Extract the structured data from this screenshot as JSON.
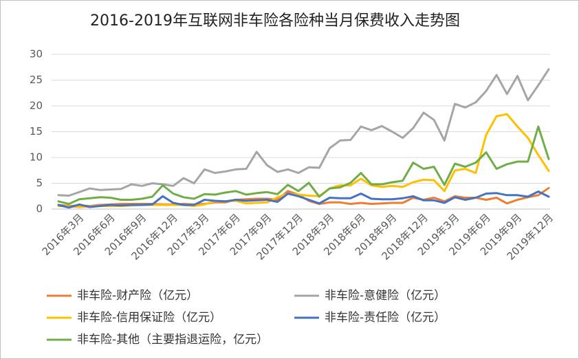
{
  "chart_data": {
    "type": "line",
    "title": "2016-2019年互联网非车险各险种当月保费收入走势图",
    "categories": [
      null,
      null,
      "2016年3月",
      null,
      null,
      "2016年6月",
      null,
      null,
      "2016年9月",
      null,
      null,
      "2016年12月",
      null,
      null,
      "2017年3月",
      null,
      null,
      "2017年6月",
      null,
      null,
      "2017年9月",
      null,
      null,
      "2017年12月",
      null,
      null,
      "2018年3月",
      null,
      null,
      "2018年6月",
      null,
      null,
      "2018年9月",
      null,
      null,
      "2018年12月",
      null,
      null,
      "2019年3月",
      null,
      null,
      "2019年6月",
      null,
      null,
      "2019年9月",
      null,
      null,
      "2019年12月"
    ],
    "series": [
      {
        "name": "非车险-财产险（亿元）",
        "color": "#ed7d31",
        "values": [
          0.8,
          0.6,
          0.7,
          0.6,
          0.8,
          0.9,
          1.0,
          1.0,
          1.0,
          1.0,
          0.9,
          0.9,
          1.0,
          0.9,
          1.0,
          1.3,
          1.3,
          1.8,
          1.9,
          2.0,
          2.0,
          1.8,
          3.5,
          2.8,
          1.6,
          1.0,
          1.3,
          1.3,
          1.0,
          1.2,
          1.0,
          1.1,
          1.2,
          1.2,
          2.2,
          1.8,
          2.2,
          1.5,
          2.5,
          2.2,
          2.2,
          1.8,
          2.2,
          1.1,
          1.8,
          2.3,
          2.7,
          4.1
        ]
      },
      {
        "name": "非车险-意健险（亿元）",
        "color": "#a5a5a5",
        "values": [
          2.7,
          2.6,
          3.3,
          4.0,
          3.7,
          3.8,
          3.9,
          4.8,
          4.5,
          5.0,
          4.8,
          4.5,
          6.0,
          5.0,
          7.7,
          7.0,
          7.3,
          7.7,
          7.8,
          11.1,
          8.5,
          7.2,
          7.7,
          7.0,
          8.1,
          8.0,
          11.8,
          13.3,
          13.4,
          16.0,
          15.3,
          16.1,
          15.0,
          13.8,
          15.7,
          18.7,
          17.3,
          13.3,
          20.4,
          19.7,
          20.7,
          22.9,
          26.0,
          22.3,
          25.8,
          21.1,
          24.0,
          27.1
        ]
      },
      {
        "name": "非车险-信用保证险（亿元）",
        "color": "#ffc000",
        "values": [
          0.6,
          0.5,
          0.4,
          0.5,
          0.6,
          0.6,
          0.6,
          0.7,
          0.8,
          0.8,
          0.8,
          0.8,
          0.8,
          0.6,
          0.9,
          1.5,
          1.5,
          1.6,
          1.1,
          1.2,
          1.3,
          2.3,
          3.0,
          2.8,
          2.6,
          2.5,
          4.0,
          4.6,
          4.6,
          5.9,
          4.6,
          4.3,
          4.5,
          4.3,
          5.2,
          5.7,
          5.6,
          3.5,
          7.5,
          7.8,
          7.0,
          14.4,
          18.0,
          18.4,
          16.0,
          13.8,
          10.5,
          7.4
        ]
      },
      {
        "name": "非车险-责任险（亿元）",
        "color": "#4472c4",
        "values": [
          0.8,
          0.3,
          0.9,
          0.4,
          0.6,
          0.8,
          0.7,
          0.8,
          0.8,
          0.9,
          2.5,
          1.2,
          0.8,
          0.8,
          1.8,
          1.6,
          1.5,
          1.8,
          1.6,
          1.7,
          1.8,
          1.4,
          3.0,
          2.5,
          1.8,
          1.1,
          2.2,
          2.1,
          2.1,
          3.0,
          2.0,
          1.9,
          1.9,
          2.1,
          2.5,
          1.7,
          1.7,
          1.2,
          2.3,
          1.8,
          2.2,
          3.0,
          3.1,
          2.7,
          2.7,
          2.4,
          3.4,
          2.4
        ]
      },
      {
        "name": "非车险-其他（主要指退运险，亿元）",
        "color": "#70ad47",
        "values": [
          1.5,
          1.0,
          1.9,
          2.1,
          2.3,
          2.2,
          1.8,
          1.8,
          2.0,
          2.4,
          4.6,
          3.0,
          2.3,
          2.0,
          2.9,
          2.8,
          3.2,
          3.5,
          2.8,
          3.1,
          3.3,
          2.9,
          4.7,
          3.5,
          5.1,
          2.4,
          4.0,
          4.2,
          5.1,
          7.0,
          4.8,
          4.8,
          5.2,
          5.5,
          9.0,
          7.8,
          8.2,
          4.7,
          8.8,
          8.2,
          9.0,
          11.0,
          7.8,
          8.7,
          9.2,
          9.2,
          16.0,
          9.7
        ]
      }
    ],
    "ylim": [
      0,
      30
    ],
    "yticks": [
      0,
      5,
      10,
      15,
      20,
      25,
      30
    ],
    "grid": true,
    "legend": "bottom"
  }
}
